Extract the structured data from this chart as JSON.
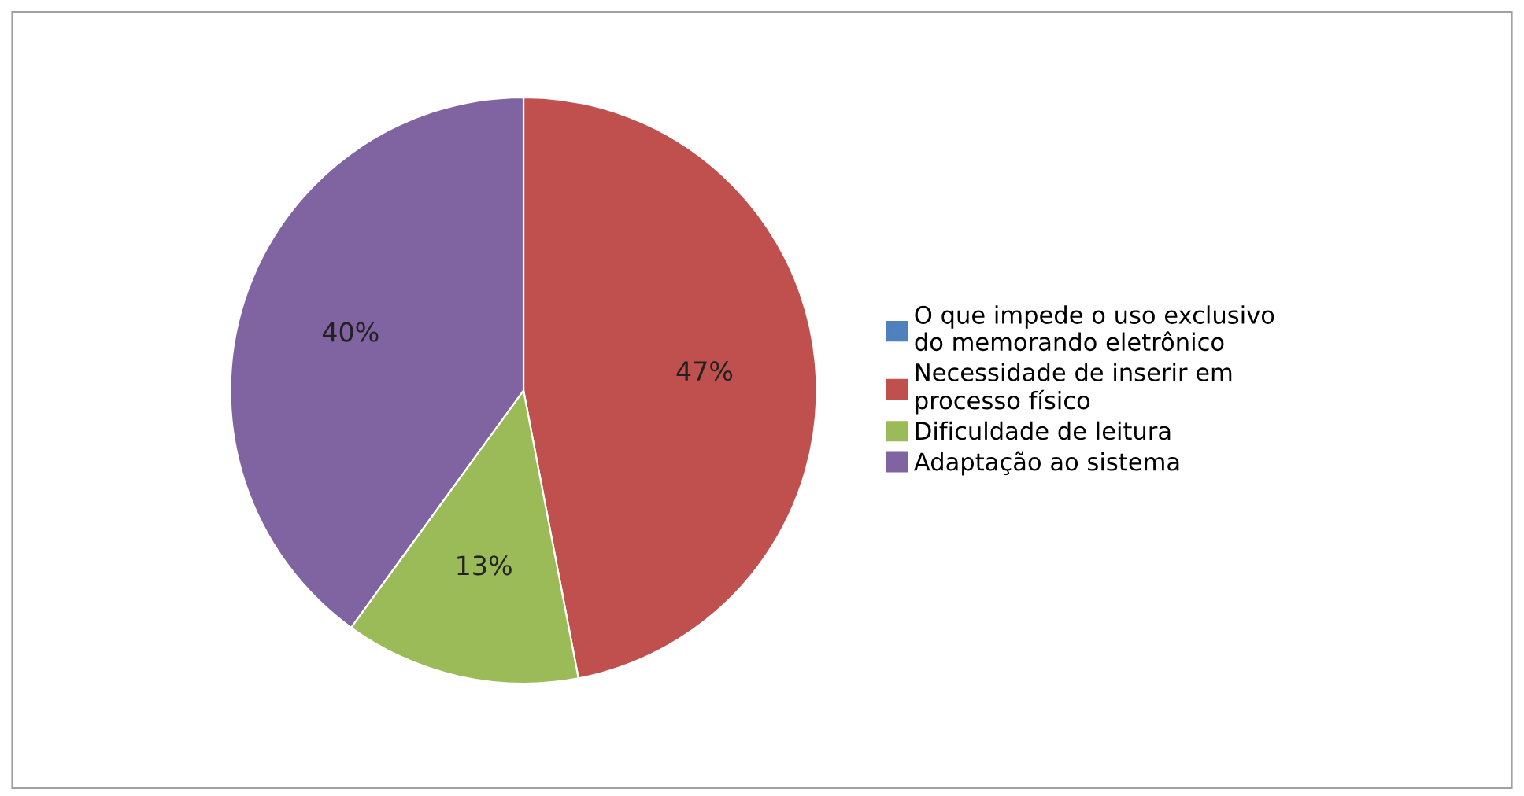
{
  "chart_data": {
    "type": "pie",
    "categories": [
      "O que impede o uso exclusivo do memorando eletrônico",
      "Necessidade de inserir em processo físico",
      "Dificuldade de leitura",
      "Adaptação ao sistema"
    ],
    "values": [
      0,
      47,
      13,
      40
    ],
    "colors": [
      "#4f81bd",
      "#c0504d",
      "#9bbb59",
      "#8064a2"
    ],
    "value_labels": [
      null,
      "47%",
      "13%",
      "40%"
    ],
    "legend": "right"
  }
}
